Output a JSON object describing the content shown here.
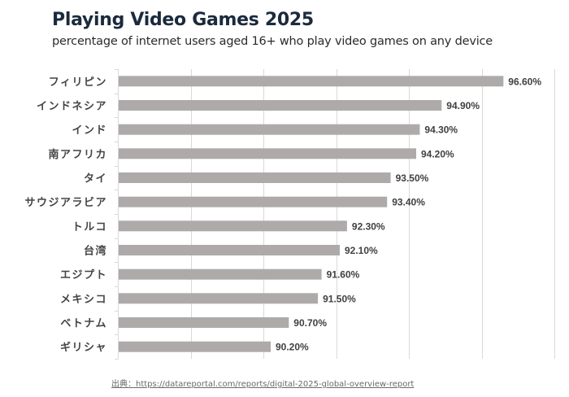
{
  "chart_data": {
    "type": "bar",
    "orientation": "horizontal",
    "title": "Playing Video Games 2025",
    "subtitle": "percentage of internet users aged 16+ who play video games on any device",
    "categories": [
      "フィリピン",
      "インドネシア",
      "インド",
      "南アフリカ",
      "タイ",
      "サウジアラビア",
      "トルコ",
      "台湾",
      "エジプト",
      "メキシコ",
      "ベトナム",
      "ギリシャ"
    ],
    "values": [
      96.6,
      94.9,
      94.3,
      94.2,
      93.5,
      93.4,
      92.3,
      92.1,
      91.6,
      91.5,
      90.7,
      90.2
    ],
    "labels": [
      "96.60%",
      "94.90%",
      "94.30%",
      "94.20%",
      "93.50%",
      "93.40%",
      "92.30%",
      "92.10%",
      "91.60%",
      "91.50%",
      "90.70%",
      "90.20%"
    ],
    "xlabel": "",
    "ylabel": "",
    "xlim": [
      86,
      98
    ],
    "grid_step": 2,
    "grid": true,
    "bar_color": "#aeaaaa",
    "gridline_color": "#d9d9d9"
  },
  "source": "出典：https://datareportal.com/reports/digital-2025-global-overview-report"
}
